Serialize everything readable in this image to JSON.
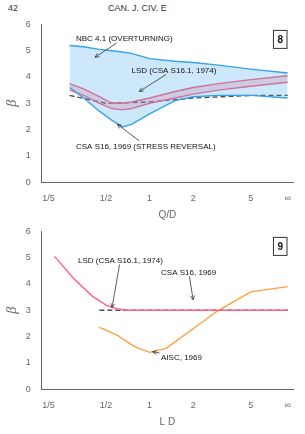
{
  "chart_data": [
    {
      "type": "line",
      "title": "42",
      "subtitle": "CAN. J. CIV. E",
      "log": "x",
      "grid": false,
      "xlabel": "Q/D",
      "ylabel": "β",
      "xlim": [
        0.18,
        9.8
      ],
      "ylim": [
        0,
        6
      ],
      "xticks": [
        {
          "value": 0.2,
          "label": "1/5"
        },
        {
          "value": 0.5,
          "label": "1/2"
        },
        1,
        2,
        5,
        {
          "value": 9.0,
          "label": "∞"
        }
      ],
      "yticks": [
        0,
        1,
        2,
        3,
        4,
        5,
        6
      ],
      "series": [
        {
          "type": "band",
          "color": "#36a2eb",
          "x": [
            0.28,
            0.35,
            0.45,
            0.55,
            0.65,
            0.75,
            1.0,
            1.5,
            2.0,
            3.0,
            5.0,
            9.0
          ],
          "upper": [
            5.2,
            5.15,
            5.05,
            5.0,
            4.95,
            4.9,
            4.7,
            4.6,
            4.55,
            4.45,
            4.3,
            4.15
          ],
          "lower": [
            3.6,
            3.2,
            2.7,
            2.35,
            2.1,
            2.2,
            2.6,
            3.1,
            3.25,
            3.3,
            3.3,
            3.2
          ]
        },
        {
          "type": "band",
          "color": "#ff6384",
          "x": [
            0.28,
            0.35,
            0.45,
            0.55,
            0.65,
            0.75,
            1.0,
            1.5,
            2.0,
            3.0,
            5.0,
            9.0
          ],
          "upper": [
            3.75,
            3.55,
            3.25,
            3.0,
            3.0,
            3.05,
            3.2,
            3.45,
            3.6,
            3.75,
            3.9,
            4.05
          ],
          "lower": [
            3.5,
            3.3,
            3.0,
            2.8,
            2.75,
            2.8,
            3.0,
            3.2,
            3.35,
            3.5,
            3.65,
            3.8
          ]
        },
        {
          "type": "line",
          "color": "#4d4d4d",
          "line_style": "dashed",
          "x": [
            0.28,
            0.5,
            1.0,
            2.0,
            5.0,
            9.0
          ],
          "values": [
            3.3,
            3.0,
            3.05,
            3.2,
            3.3,
            3.3
          ]
        }
      ],
      "annotations": [
        {
          "text": "NBC 4.1 (OVERTURNING)",
          "x": 0.31,
          "y": 5.35,
          "arrow_x": 0.42,
          "arrow_y": 4.75
        },
        {
          "text": "LSD (CSA S16.1, 1974)",
          "x": 0.75,
          "y": 4.15,
          "arrow_x": 0.85,
          "arrow_y": 3.45
        },
        {
          "text": "CSA S16, 1969 (STRESS REVERSAL)",
          "x": 0.31,
          "y": 1.25,
          "arrow_x": 0.6,
          "arrow_y": 2.2
        },
        {
          "text": "8"
        }
      ]
    },
    {
      "type": "line",
      "log": "x",
      "grid": false,
      "xlabel": "L D",
      "ylabel": "β",
      "xlim": [
        0.18,
        9.8
      ],
      "ylim": [
        0,
        6
      ],
      "xticks": [
        {
          "value": 0.2,
          "label": "1/5"
        },
        {
          "value": 0.5,
          "label": "1/2"
        },
        1,
        2,
        5,
        {
          "value": 9.0,
          "label": "∞"
        }
      ],
      "yticks": [
        0,
        1,
        2,
        3,
        4,
        5,
        6
      ],
      "series": [
        {
          "type": "line",
          "color": "#ff6384",
          "x": [
            0.22,
            0.3,
            0.4,
            0.5,
            0.6,
            0.7,
            0.8,
            1.0,
            2.0,
            5.0,
            9.0
          ],
          "values": [
            5.05,
            4.2,
            3.55,
            3.2,
            3.05,
            3.0,
            3.0,
            3.0,
            3.0,
            3.0,
            3.0
          ]
        },
        {
          "type": "line",
          "color": "#ff9f40",
          "x": [
            0.45,
            0.5,
            0.6,
            0.7,
            0.8,
            1.0,
            1.3,
            2.0,
            3.0,
            5.0,
            9.0
          ],
          "values": [
            2.35,
            2.25,
            2.05,
            1.8,
            1.6,
            1.4,
            1.55,
            2.3,
            3.0,
            3.7,
            3.9
          ]
        },
        {
          "type": "line",
          "color": "#4d4d4d",
          "line_style": "dashed",
          "x": [
            0.45,
            9.0
          ],
          "values": [
            3.0,
            3.0
          ]
        }
      ],
      "annotations": [
        {
          "text": "LSD (CSA S16.1, 1974)",
          "x": 0.32,
          "y": 4.8,
          "arrow_x": 0.55,
          "arrow_y": 3.1
        },
        {
          "text": "CSA S16, 1969",
          "x": 1.2,
          "y": 4.35,
          "arrow_x": 2.0,
          "arrow_y": 3.4
        },
        {
          "text": "AISC, 1969",
          "x": 1.2,
          "y": 1.1,
          "arrow_x": 1.05,
          "arrow_y": 1.42
        },
        {
          "text": "9"
        }
      ]
    }
  ]
}
